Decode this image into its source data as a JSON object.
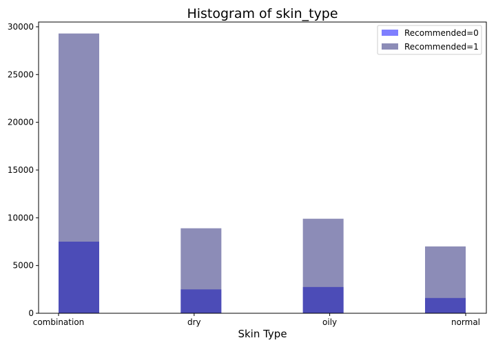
{
  "chart_data": {
    "type": "bar",
    "title": "Histogram of skin_type",
    "xlabel": "Skin Type",
    "ylabel": "",
    "categories": [
      "combination",
      "dry",
      "oily",
      "normal"
    ],
    "series": [
      {
        "name": "Recommended=0",
        "values": [
          7500,
          2500,
          2750,
          1600
        ],
        "color": "#0000ff",
        "opacity": 0.5
      },
      {
        "name": "Recommended=1",
        "values": [
          29300,
          8900,
          9900,
          7000
        ],
        "color": "#191970",
        "opacity": 0.5
      }
    ],
    "ylim": [
      0,
      30500
    ],
    "yticks": [
      "0",
      "5000",
      "10000",
      "15000",
      "20000",
      "25000",
      "30000"
    ],
    "grid": false,
    "legend_position": "top-right",
    "overlay": true
  }
}
